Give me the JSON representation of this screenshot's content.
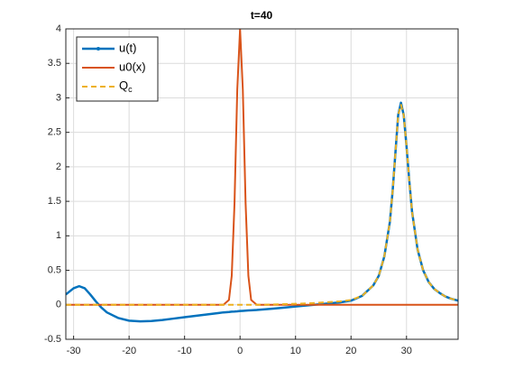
{
  "chart_data": {
    "type": "line",
    "title": "t=40",
    "x": [
      -31.4,
      -30,
      -29,
      -28,
      -27,
      -26,
      -25,
      -24,
      -22,
      -20,
      -18,
      -16,
      -14,
      -12,
      -10,
      -8,
      -6,
      -4,
      -3,
      -2,
      -1.5,
      -1,
      -0.5,
      0,
      0.5,
      1,
      1.5,
      2,
      3,
      4,
      6,
      8,
      10,
      12,
      14,
      16,
      18,
      20,
      22,
      24,
      25,
      26,
      27,
      27.5,
      28,
      28.5,
      29,
      29.5,
      30,
      30.5,
      31,
      32,
      33,
      34,
      35,
      36,
      37,
      38,
      39.3
    ],
    "series": [
      {
        "name": "u(t)",
        "color": "#0072bd",
        "values": [
          0.15,
          0.24,
          0.27,
          0.24,
          0.15,
          0.05,
          -0.04,
          -0.11,
          -0.19,
          -0.23,
          -0.24,
          -0.235,
          -0.22,
          -0.2,
          -0.18,
          -0.16,
          -0.14,
          -0.12,
          -0.11,
          -0.105,
          -0.1,
          -0.098,
          -0.095,
          -0.09,
          -0.088,
          -0.085,
          -0.082,
          -0.08,
          -0.075,
          -0.068,
          -0.055,
          -0.04,
          -0.025,
          -0.01,
          0.005,
          0.02,
          0.035,
          0.06,
          0.13,
          0.28,
          0.42,
          0.7,
          1.2,
          1.65,
          2.2,
          2.75,
          2.93,
          2.75,
          2.3,
          1.8,
          1.35,
          0.8,
          0.5,
          0.33,
          0.23,
          0.17,
          0.12,
          0.09,
          0.06
        ]
      },
      {
        "name": "u0(x)",
        "color": "#d95319",
        "values": [
          0,
          0,
          0,
          0,
          0,
          0,
          0,
          0,
          0,
          0,
          0,
          0,
          0,
          0,
          0,
          0,
          0,
          0,
          0,
          0.07,
          0.42,
          1.47,
          3.12,
          4,
          3.12,
          1.47,
          0.42,
          0.07,
          0,
          0,
          0,
          0,
          0,
          0,
          0,
          0,
          0,
          0,
          0,
          0,
          0,
          0,
          0,
          0,
          0,
          0,
          0,
          0,
          0,
          0,
          0,
          0,
          0,
          0,
          0,
          0,
          0,
          0,
          0
        ]
      },
      {
        "name": "Qc",
        "color": "#edb120",
        "values": [
          0,
          0,
          0,
          0,
          0,
          0,
          0,
          0,
          0,
          0,
          0,
          0,
          0,
          0,
          0,
          0,
          0,
          0,
          0,
          0,
          0,
          0,
          0,
          0,
          0,
          0,
          0,
          0,
          0,
          0,
          0.005,
          0.01,
          0.015,
          0.02,
          0.03,
          0.04,
          0.05,
          0.07,
          0.13,
          0.28,
          0.42,
          0.7,
          1.2,
          1.65,
          2.2,
          2.75,
          2.9,
          2.75,
          2.3,
          1.8,
          1.35,
          0.8,
          0.5,
          0.33,
          0.23,
          0.17,
          0.12,
          0.09,
          0.06
        ]
      }
    ],
    "xlim": [
      -31.4,
      39.3
    ],
    "ylim": [
      -0.5,
      4
    ],
    "xticks": [
      -30,
      -20,
      -10,
      0,
      10,
      20,
      30
    ],
    "yticks": [
      -0.5,
      0,
      0.5,
      1,
      1.5,
      2,
      2.5,
      3,
      3.5,
      4
    ],
    "grid": true,
    "legend": "northwest"
  }
}
